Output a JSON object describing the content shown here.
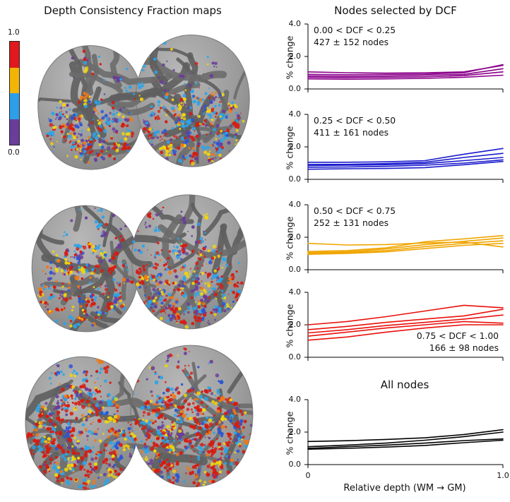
{
  "left_panel": {
    "title": "Depth Consistency Fraction maps",
    "colorbar": {
      "max_label": "1.0",
      "min_label": "0.0",
      "colors": [
        "#e0191c",
        "#f2b505",
        "#2d9fe8",
        "#6a3d9a"
      ]
    }
  },
  "right_panel": {
    "title": "Nodes selected by DCF",
    "ylabel": "% change",
    "yticks": [
      "0.0",
      "2.0",
      "4.0"
    ],
    "xticks": [
      "0",
      "1.0"
    ],
    "xlabel": "Relative depth (WM → GM)"
  },
  "chart_data": [
    {
      "type": "line",
      "annotation": [
        "0.00 < DCF < 0.25",
        "427 ± 152 nodes"
      ],
      "annotation_position": "top-left",
      "color": "#8b008b",
      "xlim": [
        0,
        1
      ],
      "ylim": [
        0,
        4
      ],
      "x": [
        0,
        0.2,
        0.4,
        0.6,
        0.8,
        1.0
      ],
      "series": [
        {
          "name": "line-1",
          "values": [
            1.05,
            1.0,
            0.98,
            1.0,
            1.05,
            1.45
          ]
        },
        {
          "name": "line-2",
          "values": [
            0.9,
            0.88,
            0.9,
            0.92,
            1.0,
            1.5
          ]
        },
        {
          "name": "line-3",
          "values": [
            0.8,
            0.78,
            0.8,
            0.85,
            0.9,
            1.25
          ]
        },
        {
          "name": "line-4",
          "values": [
            0.72,
            0.7,
            0.72,
            0.75,
            0.82,
            1.05
          ]
        },
        {
          "name": "line-5",
          "values": [
            0.62,
            0.6,
            0.62,
            0.65,
            0.72,
            0.85
          ]
        }
      ]
    },
    {
      "type": "line",
      "annotation": [
        "0.25 < DCF < 0.50",
        "411 ± 161 nodes"
      ],
      "annotation_position": "top-left",
      "color": "#1a1acd",
      "xlim": [
        0,
        1
      ],
      "ylim": [
        0,
        4
      ],
      "x": [
        0,
        0.2,
        0.4,
        0.6,
        0.8,
        1.0
      ],
      "series": [
        {
          "name": "line-1",
          "values": [
            1.05,
            1.05,
            1.08,
            1.15,
            1.55,
            1.9
          ]
        },
        {
          "name": "line-2",
          "values": [
            0.92,
            0.92,
            0.97,
            1.05,
            1.35,
            1.6
          ]
        },
        {
          "name": "line-3",
          "values": [
            0.85,
            0.87,
            0.9,
            0.97,
            1.15,
            1.35
          ]
        },
        {
          "name": "line-4",
          "values": [
            0.75,
            0.76,
            0.8,
            0.87,
            1.0,
            1.2
          ]
        },
        {
          "name": "line-5",
          "values": [
            0.62,
            0.65,
            0.67,
            0.72,
            0.9,
            1.1
          ]
        }
      ]
    },
    {
      "type": "line",
      "annotation": [
        "0.50 < DCF < 0.75",
        "252 ± 131 nodes"
      ],
      "annotation_position": "top-left",
      "color": "#f0a500",
      "xlim": [
        0,
        1
      ],
      "ylim": [
        0,
        4
      ],
      "x": [
        0,
        0.2,
        0.4,
        0.6,
        0.8,
        1.0
      ],
      "series": [
        {
          "name": "line-1",
          "values": [
            1.62,
            1.52,
            1.55,
            1.65,
            1.7,
            1.4
          ]
        },
        {
          "name": "line-2",
          "values": [
            1.12,
            1.18,
            1.35,
            1.72,
            1.9,
            2.1
          ]
        },
        {
          "name": "line-3",
          "values": [
            1.05,
            1.1,
            1.28,
            1.55,
            1.75,
            1.95
          ]
        },
        {
          "name": "line-4",
          "values": [
            1.0,
            1.05,
            1.18,
            1.42,
            1.62,
            1.78
          ]
        },
        {
          "name": "line-5",
          "values": [
            0.95,
            1.0,
            1.1,
            1.3,
            1.5,
            1.62
          ]
        }
      ]
    },
    {
      "type": "line",
      "annotation": [
        "0.75 < DCF < 1.00",
        "166 ± 98 nodes"
      ],
      "annotation_position": "bottom-right",
      "color": "#e8100c",
      "xlim": [
        0,
        1
      ],
      "ylim": [
        0,
        4
      ],
      "x": [
        0,
        0.2,
        0.4,
        0.6,
        0.8,
        1.0
      ],
      "series": [
        {
          "name": "line-1",
          "values": [
            2.0,
            2.2,
            2.5,
            2.85,
            3.2,
            3.05
          ]
        },
        {
          "name": "line-2",
          "values": [
            1.7,
            1.9,
            2.15,
            2.35,
            2.55,
            2.95
          ]
        },
        {
          "name": "line-3",
          "values": [
            1.5,
            1.7,
            1.95,
            2.15,
            2.35,
            2.6
          ]
        },
        {
          "name": "line-4",
          "values": [
            1.3,
            1.55,
            1.8,
            2.0,
            2.2,
            2.1
          ]
        },
        {
          "name": "line-5",
          "values": [
            1.05,
            1.25,
            1.55,
            1.8,
            2.0,
            2.0
          ]
        }
      ]
    },
    {
      "type": "line",
      "title": "All nodes",
      "color": "#000000",
      "xlim": [
        0,
        1
      ],
      "ylim": [
        0,
        4
      ],
      "x": [
        0,
        0.2,
        0.4,
        0.6,
        0.8,
        1.0
      ],
      "series": [
        {
          "name": "line-1",
          "values": [
            1.42,
            1.47,
            1.55,
            1.65,
            1.85,
            2.15
          ]
        },
        {
          "name": "line-2",
          "values": [
            1.1,
            1.2,
            1.32,
            1.5,
            1.72,
            2.0
          ]
        },
        {
          "name": "line-3",
          "values": [
            1.0,
            1.1,
            1.2,
            1.32,
            1.48,
            1.58
          ]
        },
        {
          "name": "line-4",
          "values": [
            0.95,
            1.0,
            1.08,
            1.18,
            1.35,
            1.5
          ]
        }
      ]
    }
  ]
}
